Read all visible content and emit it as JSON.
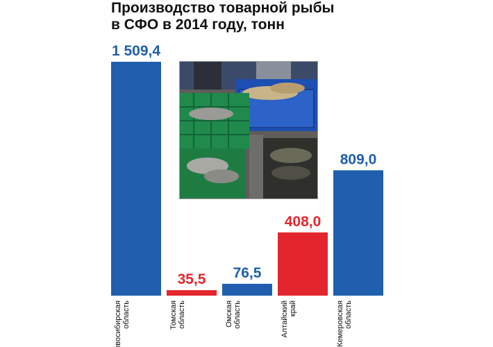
{
  "title_line1": "Производство товарной рыбы",
  "title_line2": "в СФО в 2014 году, тонн",
  "colors": {
    "blue": "#1f5fae",
    "red": "#e3262d"
  },
  "photo": {
    "icon": "fish-crates-photo"
  },
  "chart_data": {
    "type": "bar",
    "title": "Производство товарной рыбы в СФО в 2014 году, тонн",
    "categories": [
      [
        "Новосибирская",
        "область"
      ],
      [
        "Томская",
        "область"
      ],
      [
        "Омская",
        "область"
      ],
      [
        "Алтайский",
        "край"
      ],
      [
        "Кемеровская",
        "область"
      ]
    ],
    "values": [
      1509.4,
      35.5,
      76.5,
      408.0,
      809.0
    ],
    "value_labels": [
      "1 509,4",
      "35,5",
      "76,5",
      "408,0",
      "809,0"
    ],
    "bar_colors": [
      "#1f5fae",
      "#e3262d",
      "#1f5fae",
      "#e3262d",
      "#1f5fae"
    ],
    "ylim": [
      0,
      1509.4
    ],
    "grid": false,
    "legend": "none"
  }
}
